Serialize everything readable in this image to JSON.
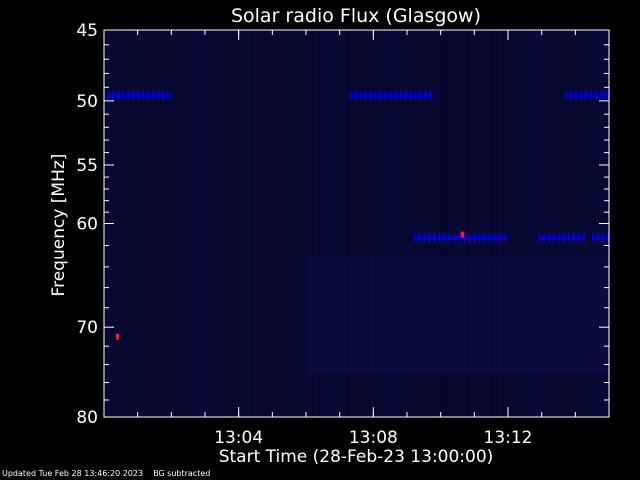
{
  "chart_data": {
    "type": "heatmap",
    "title": "Solar radio Flux (Glasgow)",
    "xlabel": "Start Time (28-Feb-23 13:00:00)",
    "ylabel": "Frequency [MHz]",
    "x_unit": "minutes after 13:00",
    "xlim": [
      0,
      15
    ],
    "x_ticks": [
      {
        "minutes": 4,
        "label": "13:04"
      },
      {
        "minutes": 8,
        "label": "13:08"
      },
      {
        "minutes": 12,
        "label": "13:12"
      }
    ],
    "y_scale": "log",
    "y_reversed": true,
    "ylim": [
      45,
      80
    ],
    "y_major_ticks": [
      45,
      50,
      55,
      60,
      70,
      80
    ],
    "y_minor_ticks": [
      46,
      47,
      48,
      49,
      51,
      52,
      53,
      54,
      56,
      57,
      58,
      59,
      62,
      64,
      66,
      68,
      72,
      74,
      76,
      78
    ],
    "colors": {
      "background": "#000000",
      "frame": "#ffffff",
      "low": "#06062e",
      "mid": "#0000ff",
      "high": "#ff2020"
    },
    "features": [
      {
        "description": "narrow-band emission",
        "freq": 49.6,
        "x_ranges": [
          [
            0.1,
            2.0
          ],
          [
            7.3,
            9.7
          ],
          [
            13.7,
            15
          ]
        ],
        "intensity": "mid"
      },
      {
        "description": "narrow-band emission",
        "freq": 61.3,
        "x_ranges": [
          [
            9.2,
            12.0
          ],
          [
            12.9,
            14.3
          ],
          [
            14.5,
            15
          ]
        ],
        "intensity": "mid"
      },
      {
        "description": "bright spot",
        "freq": 61.0,
        "x_ranges": [
          [
            10.6,
            10.7
          ]
        ],
        "intensity": "high"
      },
      {
        "description": "bright spot",
        "freq": 71.0,
        "x_ranges": [
          [
            0.35,
            0.45
          ]
        ],
        "intensity": "high"
      }
    ]
  },
  "footer": {
    "updated": "Updated Tue Feb 28 13:46:20 2023",
    "bg_note": "BG subtracted"
  }
}
